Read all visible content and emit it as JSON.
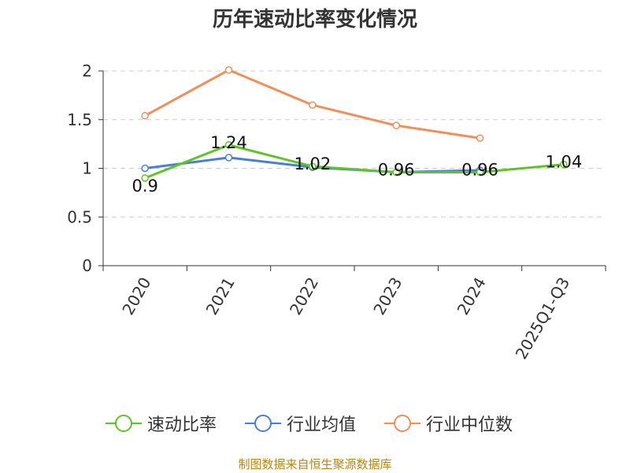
{
  "title": "历年速动比率变化情况",
  "source": "制图数据来自恒生聚源数据库",
  "colors": {
    "grid": "#cccccc",
    "axis": "#333333",
    "text": "#333333"
  },
  "chart_data": {
    "type": "line",
    "categories": [
      "2020",
      "2021",
      "2022",
      "2023",
      "2024",
      "2025Q1-Q3"
    ],
    "ylim": [
      0,
      2
    ],
    "yticks": [
      0,
      0.5,
      1,
      1.5,
      2
    ],
    "ytick_labels": [
      "0",
      "0.5",
      "1",
      "1.5",
      "2"
    ],
    "grid": true,
    "legend_position": "bottom",
    "series": [
      {
        "name": "速动比率",
        "color": "#5fc426",
        "values": [
          0.9,
          1.24,
          1.02,
          0.96,
          0.96,
          1.04
        ],
        "labels": [
          "0.9",
          "1.24",
          "1.02",
          "0.96",
          "0.96",
          "1.04"
        ]
      },
      {
        "name": "行业均值",
        "color": "#4a7fd4",
        "values": [
          1.0,
          1.11,
          1.01,
          0.96,
          0.98,
          null
        ],
        "labels": []
      },
      {
        "name": "行业中位数",
        "color": "#f28e5a",
        "values": [
          1.54,
          2.01,
          1.65,
          1.44,
          1.31,
          null
        ],
        "labels": []
      }
    ]
  }
}
